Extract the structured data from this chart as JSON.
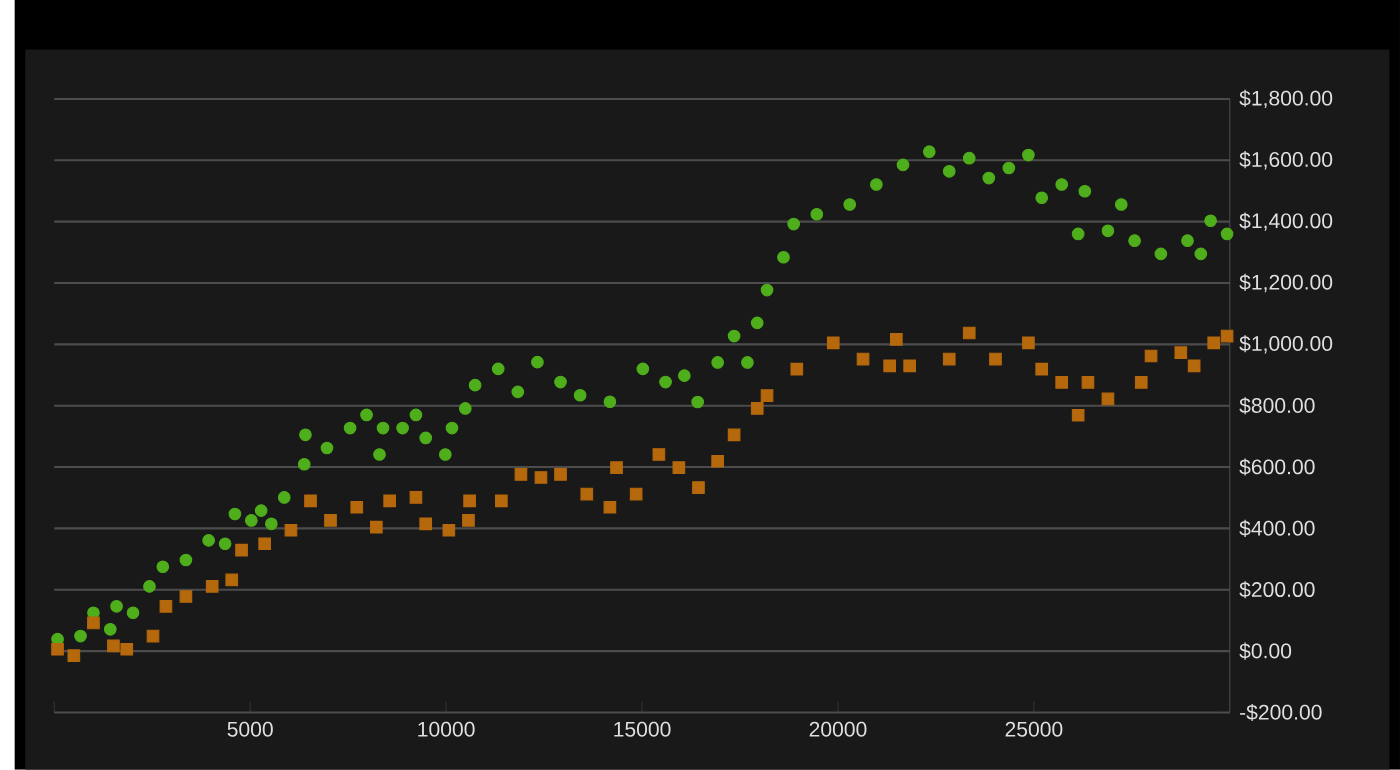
{
  "chart_data": {
    "type": "scatter",
    "xlim": [
      0,
      30000
    ],
    "ylim": [
      -200,
      1800
    ],
    "xticks": [
      {
        "value": 0,
        "label": null
      },
      5000,
      10000,
      15000,
      20000,
      25000
    ],
    "yticks": [
      {
        "value": -200,
        "label": "-$200.00"
      },
      {
        "value": 0,
        "label": "$0.00"
      },
      {
        "value": 200,
        "label": "$200.00"
      },
      {
        "value": 400,
        "label": "$400.00"
      },
      {
        "value": 600,
        "label": "$600.00"
      },
      {
        "value": 800,
        "label": "$800.00"
      },
      {
        "value": 1000,
        "label": "$1,000.00"
      },
      {
        "value": 1200,
        "label": "$1,200.00"
      },
      {
        "value": 1400,
        "label": "$1,400.00"
      },
      {
        "value": 1600,
        "label": "$1,600.00"
      },
      {
        "value": 1800,
        "label": "$1,800.00"
      }
    ],
    "grid": "y",
    "series": [
      {
        "color": "#4fae1b",
        "marker": "circle",
        "x": [
          84,
          670,
          1000,
          1430,
          1590,
          2010,
          2430,
          2770,
          3360,
          3940,
          4360,
          4610,
          5030,
          5280,
          5540,
          5870,
          6380,
          6410,
          6960,
          7550,
          7970,
          8300,
          8390,
          8890,
          9230,
          9480,
          9980,
          10150,
          10490,
          10740,
          11330,
          11830,
          12330,
          12920,
          13420,
          14180,
          15020,
          15600,
          16080,
          16420,
          16930,
          17350,
          17690,
          17940,
          18190,
          18610,
          18870,
          19460,
          20300,
          20980,
          21660,
          22330,
          22840,
          23350,
          23850,
          24360,
          24860,
          25200,
          25710,
          26130,
          26300,
          26890,
          27230,
          27570,
          28240,
          28920,
          29260,
          29510,
          29930
        ],
        "values": [
          39,
          49,
          125,
          71,
          146,
          125,
          211,
          275,
          297,
          361,
          350,
          447,
          426,
          458,
          415,
          501,
          609,
          705,
          662,
          727,
          770,
          641,
          727,
          727,
          770,
          695,
          641,
          727,
          791,
          867,
          920,
          845,
          942,
          877,
          834,
          813,
          920,
          877,
          898,
          812,
          941,
          1027,
          941,
          1070,
          1177,
          1284,
          1392,
          1424,
          1456,
          1521,
          1585,
          1628,
          1564,
          1607,
          1542,
          1575,
          1617,
          1478,
          1521,
          1360,
          1499,
          1370,
          1456,
          1338,
          1295,
          1338,
          1295,
          1403,
          1360
        ]
      },
      {
        "color": "#b5680c",
        "marker": "square",
        "x": [
          84,
          500,
          1000,
          1510,
          1850,
          2520,
          2850,
          3360,
          4030,
          4530,
          4780,
          5370,
          6040,
          6540,
          7050,
          7720,
          8220,
          8560,
          9230,
          9480,
          10070,
          10570,
          10600,
          11410,
          11910,
          12420,
          12920,
          13590,
          14180,
          14350,
          14850,
          15430,
          15940,
          16440,
          16930,
          17350,
          17940,
          18190,
          18950,
          19880,
          20640,
          21320,
          21490,
          21830,
          22840,
          23350,
          24020,
          24860,
          25200,
          25710,
          26130,
          26380,
          26890,
          27740,
          27990,
          28750,
          29090,
          29590,
          29930
        ],
        "values": [
          6,
          -15,
          92,
          17,
          6,
          49,
          146,
          178,
          211,
          232,
          329,
          350,
          394,
          490,
          426,
          469,
          404,
          490,
          501,
          415,
          394,
          426,
          490,
          490,
          576,
          566,
          576,
          512,
          469,
          598,
          512,
          641,
          598,
          533,
          619,
          705,
          791,
          833,
          919,
          1005,
          952,
          930,
          1016,
          930,
          952,
          1037,
          952,
          1005,
          919,
          876,
          769,
          876,
          822,
          876,
          962,
          973,
          930,
          1005,
          1027
        ]
      }
    ]
  }
}
